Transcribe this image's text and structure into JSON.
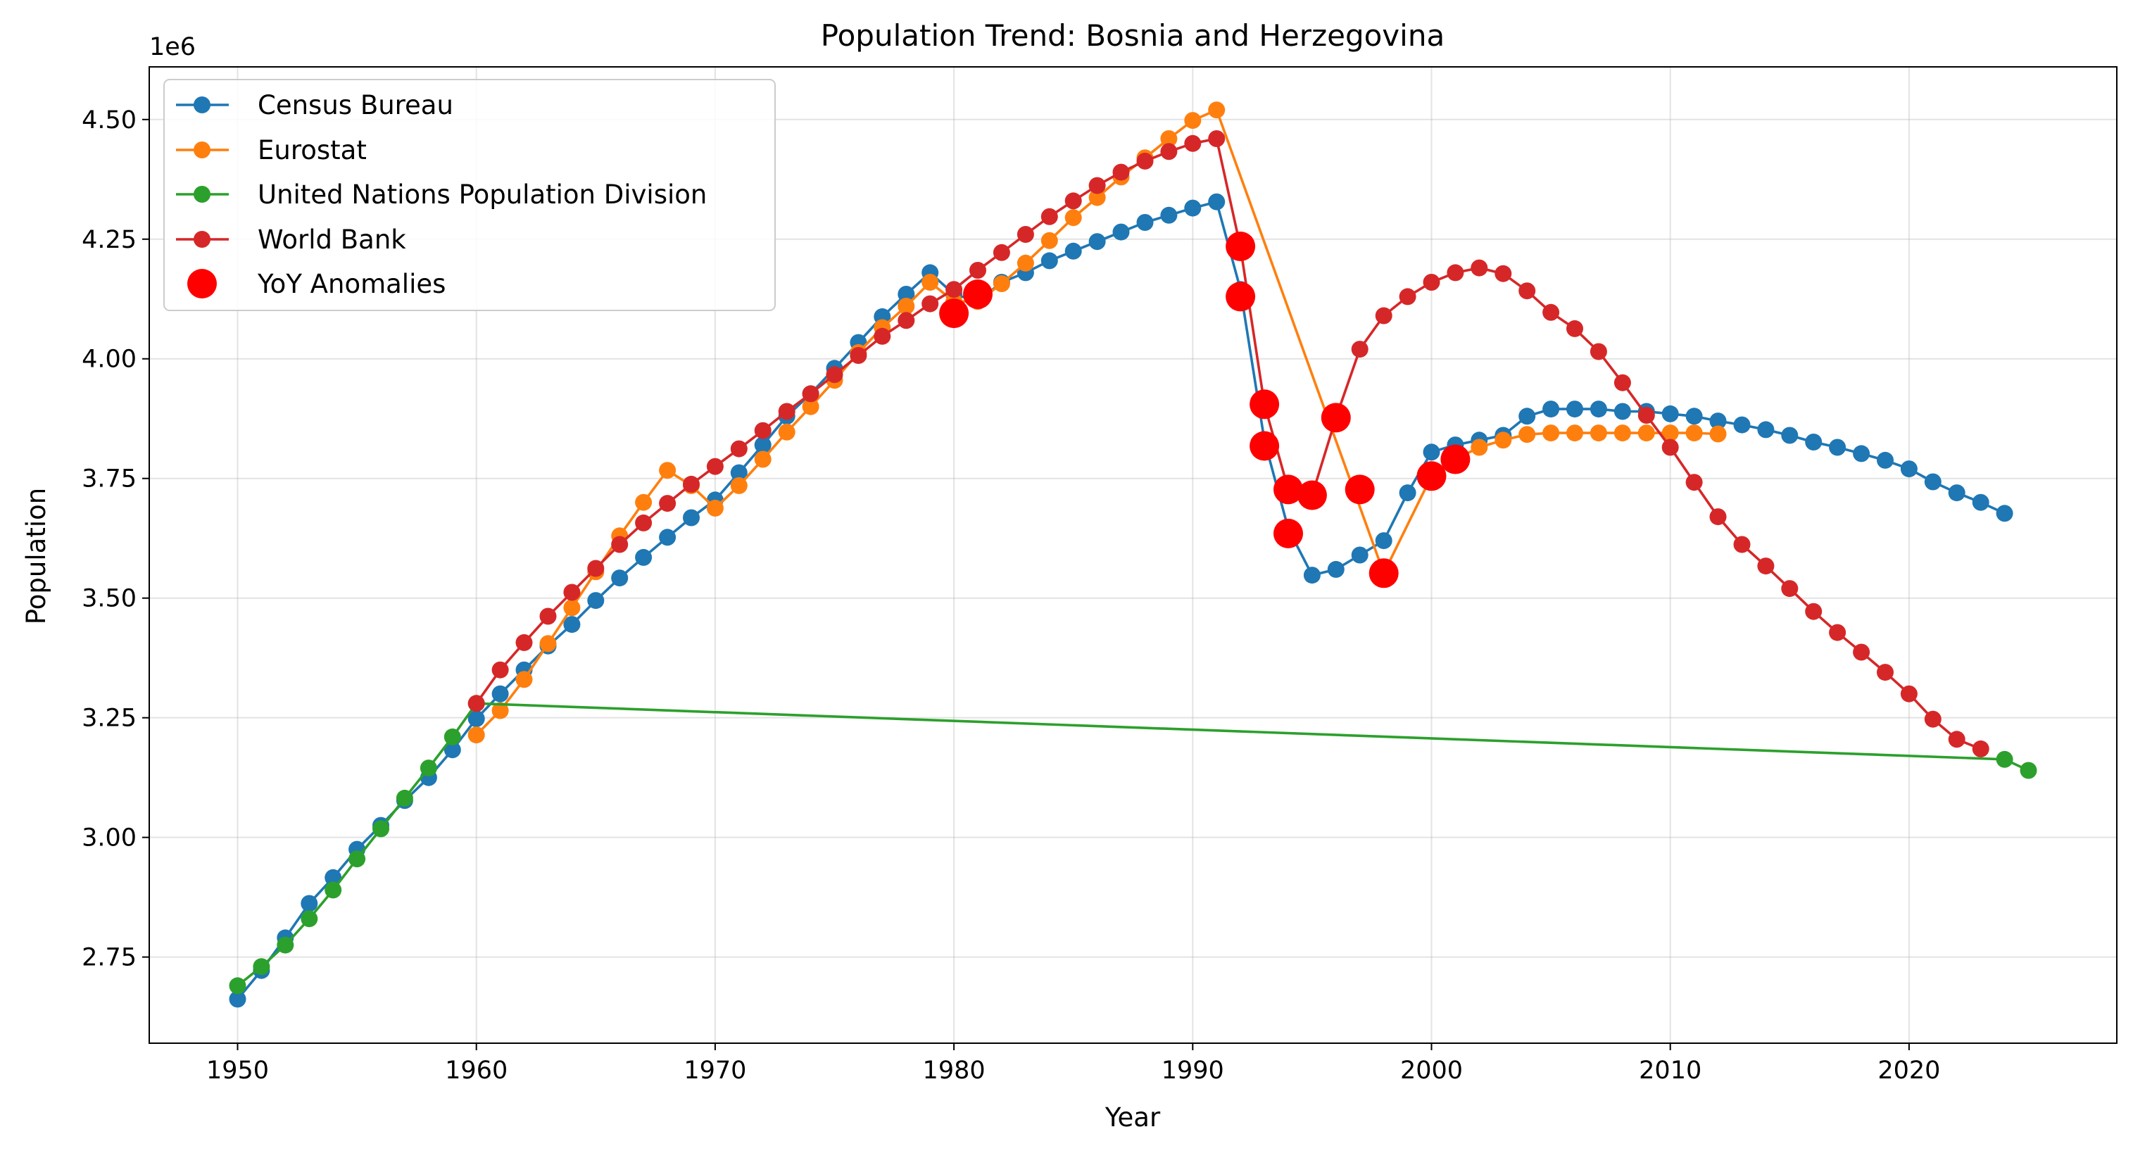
{
  "chart_data": {
    "type": "line",
    "title": "Population Trend: Bosnia and Herzegovina",
    "xlabel": "Year",
    "ylabel": "Population",
    "y_offset_text": "1e6",
    "xlim": [
      1946.3,
      2028.7
    ],
    "ylim": [
      2.57,
      4.61
    ],
    "x_ticks": [
      1950,
      1960,
      1970,
      1980,
      1990,
      2000,
      2010,
      2020
    ],
    "y_ticks": [
      2.75,
      3.0,
      3.25,
      3.5,
      3.75,
      4.0,
      4.25,
      4.5
    ],
    "y_tick_labels": [
      "2.75",
      "3.00",
      "3.25",
      "3.50",
      "3.75",
      "4.00",
      "4.25",
      "4.50"
    ],
    "grid": true,
    "legend_position": "upper-left",
    "series": [
      {
        "name": "Census Bureau",
        "color": "#1f77b4",
        "x": [
          1950,
          1951,
          1952,
          1953,
          1954,
          1955,
          1956,
          1957,
          1958,
          1959,
          1960,
          1961,
          1962,
          1963,
          1964,
          1965,
          1966,
          1967,
          1968,
          1969,
          1970,
          1971,
          1972,
          1973,
          1974,
          1975,
          1976,
          1977,
          1978,
          1979,
          1980,
          1981,
          1982,
          1983,
          1984,
          1985,
          1986,
          1987,
          1988,
          1989,
          1990,
          1991,
          1992,
          1993,
          1994,
          1995,
          1996,
          1997,
          1998,
          1999,
          2000,
          2001,
          2002,
          2003,
          2004,
          2005,
          2006,
          2007,
          2008,
          2009,
          2010,
          2011,
          2012,
          2013,
          2014,
          2015,
          2016,
          2017,
          2018,
          2019,
          2020,
          2021,
          2022,
          2023,
          2024
        ],
        "y": [
          2.662,
          2.722,
          2.79,
          2.862,
          2.916,
          2.975,
          3.025,
          3.077,
          3.125,
          3.183,
          3.248,
          3.3,
          3.35,
          3.4,
          3.445,
          3.495,
          3.542,
          3.585,
          3.627,
          3.668,
          3.705,
          3.762,
          3.82,
          3.88,
          3.927,
          3.98,
          4.034,
          4.088,
          4.135,
          4.18,
          4.135,
          4.12,
          4.16,
          4.18,
          4.205,
          4.225,
          4.245,
          4.265,
          4.285,
          4.3,
          4.315,
          4.328,
          4.145,
          3.83,
          3.645,
          3.548,
          3.56,
          3.59,
          3.62,
          3.72,
          3.805,
          3.82,
          3.83,
          3.84,
          3.88,
          3.895,
          3.895,
          3.895,
          3.89,
          3.89,
          3.885,
          3.88,
          3.87,
          3.862,
          3.852,
          3.84,
          3.826,
          3.815,
          3.802,
          3.788,
          3.77,
          3.743,
          3.72,
          3.7,
          3.677
        ]
      },
      {
        "name": "Eurostat",
        "color": "#ff7f0e",
        "x": [
          1960,
          1961,
          1962,
          1963,
          1964,
          1965,
          1966,
          1967,
          1968,
          1969,
          1970,
          1971,
          1972,
          1973,
          1974,
          1975,
          1976,
          1977,
          1978,
          1979,
          1980,
          1981,
          1982,
          1983,
          1984,
          1985,
          1986,
          1987,
          1988,
          1989,
          1990,
          1991,
          1998,
          2000,
          2001,
          2002,
          2003,
          2004,
          2005,
          2006,
          2007,
          2008,
          2009,
          2010,
          2011,
          2012
        ],
        "y": [
          3.214,
          3.265,
          3.33,
          3.405,
          3.48,
          3.555,
          3.63,
          3.7,
          3.767,
          3.735,
          3.688,
          3.735,
          3.79,
          3.847,
          3.9,
          3.955,
          4.013,
          4.065,
          4.11,
          4.16,
          4.12,
          4.12,
          4.157,
          4.2,
          4.247,
          4.295,
          4.337,
          4.38,
          4.42,
          4.46,
          4.498,
          4.52,
          3.552,
          3.755,
          3.79,
          3.815,
          3.83,
          3.842,
          3.845,
          3.845,
          3.845,
          3.845,
          3.845,
          3.845,
          3.845,
          3.843
        ]
      },
      {
        "name": "United Nations Population Division",
        "color": "#2ca02c",
        "x": [
          1950,
          1951,
          1952,
          1953,
          1954,
          1955,
          1956,
          1957,
          1958,
          1959,
          1960,
          2024,
          2025
        ],
        "y": [
          2.69,
          2.73,
          2.775,
          2.83,
          2.89,
          2.955,
          3.018,
          3.082,
          3.145,
          3.21,
          3.28,
          3.163,
          3.14
        ]
      },
      {
        "name": "World Bank",
        "color": "#d62728",
        "x": [
          1960,
          1961,
          1962,
          1963,
          1964,
          1965,
          1966,
          1967,
          1968,
          1969,
          1970,
          1971,
          1972,
          1973,
          1974,
          1975,
          1976,
          1977,
          1978,
          1979,
          1980,
          1981,
          1982,
          1983,
          1984,
          1985,
          1986,
          1987,
          1988,
          1989,
          1990,
          1991,
          1992,
          1993,
          1994,
          1995,
          1996,
          1997,
          1998,
          1999,
          2000,
          2001,
          2002,
          2003,
          2004,
          2005,
          2006,
          2007,
          2008,
          2009,
          2010,
          2011,
          2012,
          2013,
          2014,
          2015,
          2016,
          2017,
          2018,
          2019,
          2020,
          2021,
          2022,
          2023
        ],
        "y": [
          3.28,
          3.35,
          3.407,
          3.462,
          3.512,
          3.562,
          3.612,
          3.657,
          3.698,
          3.738,
          3.775,
          3.812,
          3.85,
          3.89,
          3.927,
          3.967,
          4.007,
          4.047,
          4.08,
          4.115,
          4.145,
          4.185,
          4.222,
          4.26,
          4.297,
          4.33,
          4.362,
          4.39,
          4.413,
          4.433,
          4.45,
          4.46,
          4.233,
          3.905,
          3.727,
          3.715,
          3.877,
          4.02,
          4.09,
          4.13,
          4.16,
          4.18,
          4.19,
          4.178,
          4.142,
          4.097,
          4.063,
          4.015,
          3.95,
          3.882,
          3.815,
          3.742,
          3.67,
          3.612,
          3.567,
          3.52,
          3.472,
          3.428,
          3.387,
          3.345,
          3.3,
          3.247,
          3.205,
          3.185
        ]
      }
    ],
    "anomalies": {
      "name": "YoY Anomalies",
      "color": "#ff0000",
      "points": [
        [
          1980,
          4.095
        ],
        [
          1981,
          4.135
        ],
        [
          1992,
          4.235
        ],
        [
          1992,
          4.13
        ],
        [
          1993,
          3.905
        ],
        [
          1993,
          3.818
        ],
        [
          1994,
          3.727
        ],
        [
          1994,
          3.635
        ],
        [
          1995,
          3.715
        ],
        [
          1996,
          3.877
        ],
        [
          1997,
          3.727
        ],
        [
          1998,
          3.552
        ],
        [
          2000,
          3.755
        ],
        [
          2001,
          3.79
        ]
      ]
    }
  }
}
